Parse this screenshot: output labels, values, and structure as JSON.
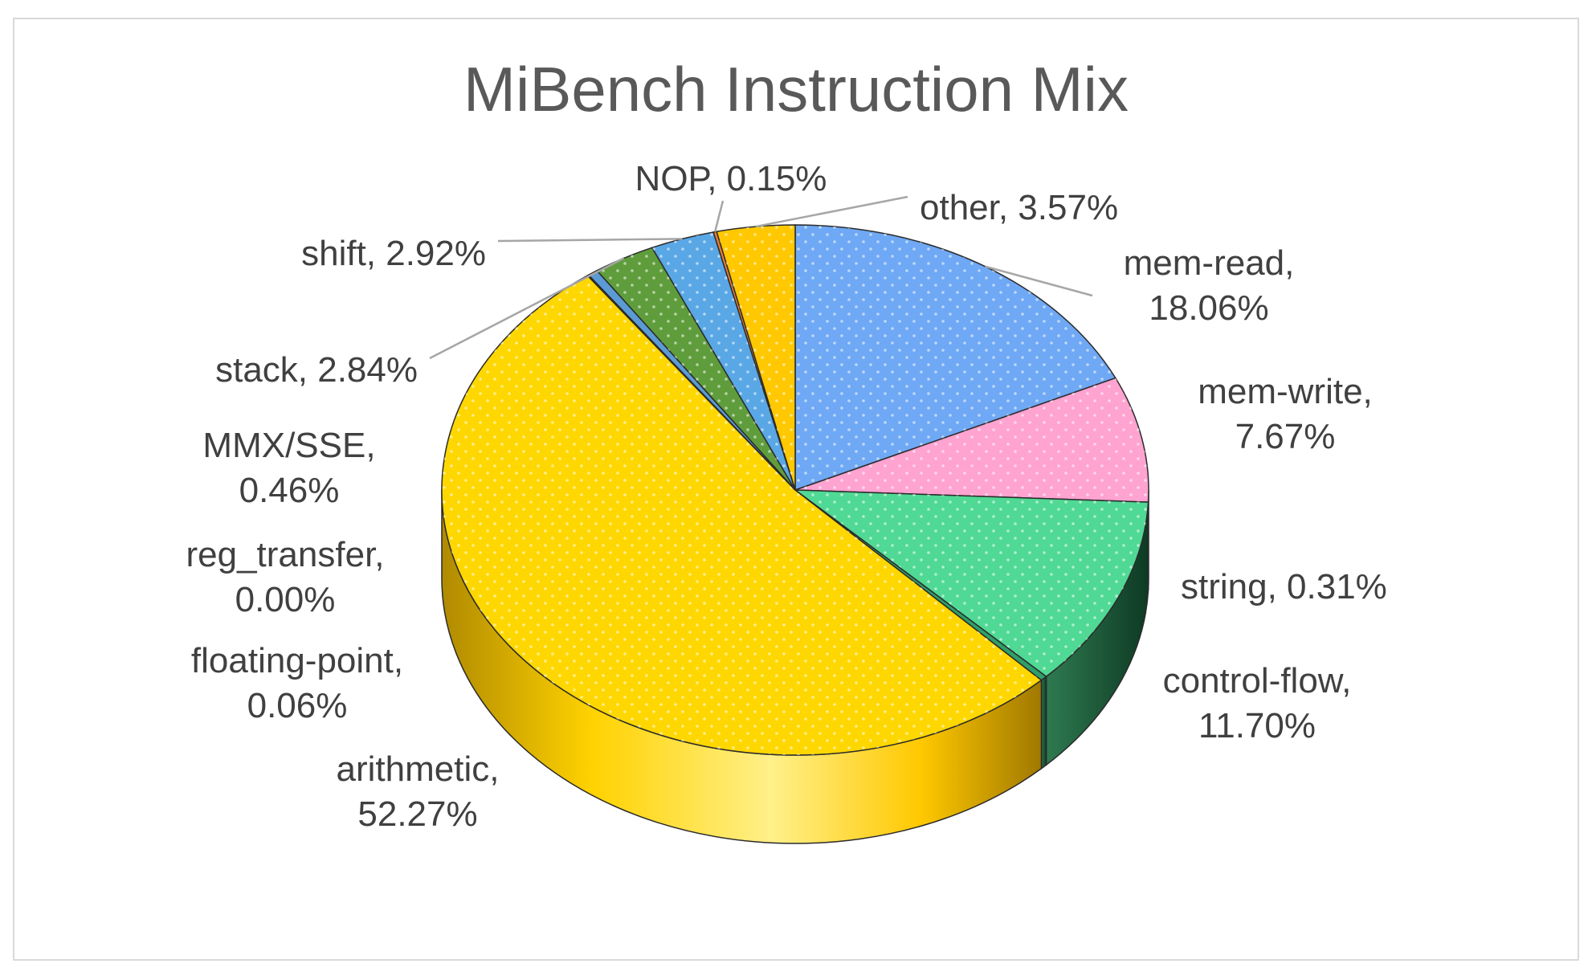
{
  "chart_data": {
    "type": "pie",
    "title": "MiBench Instruction Mix",
    "slices": [
      {
        "label": "mem-read",
        "value": 18.06,
        "display": "18.06%",
        "color": "#6fa8f5"
      },
      {
        "label": "mem-write",
        "value": 7.67,
        "display": "7.67%",
        "color": "#ffa3d1"
      },
      {
        "label": "control-flow",
        "value": 11.7,
        "display": "11.70%",
        "color": "#4fd994"
      },
      {
        "label": "string",
        "value": 0.31,
        "display": "0.31%",
        "color": "#2f9f6a"
      },
      {
        "label": "arithmetic",
        "value": 52.27,
        "display": "52.27%",
        "color": "#ffd700"
      },
      {
        "label": "floating-point",
        "value": 0.06,
        "display": "0.06%",
        "color": "#7030a0"
      },
      {
        "label": "reg_transfer",
        "value": 0.0,
        "display": "0.00%",
        "color": "#a5a5a5"
      },
      {
        "label": "MMX/SSE",
        "value": 0.46,
        "display": "0.46%",
        "color": "#5b9bd5"
      },
      {
        "label": "stack",
        "value": 2.84,
        "display": "2.84%",
        "color": "#5f9d3c"
      },
      {
        "label": "shift",
        "value": 2.92,
        "display": "2.92%",
        "color": "#5aa7e6"
      },
      {
        "label": "NOP",
        "value": 0.15,
        "display": "0.15%",
        "color": "#ed7d31"
      },
      {
        "label": "other",
        "value": 3.57,
        "display": "3.57%",
        "color": "#ffc800"
      }
    ],
    "label_strings": {
      "mem-read": [
        "mem-read,",
        "18.06%"
      ],
      "mem-write": [
        "mem-write,",
        "7.67%"
      ],
      "control-flow": [
        "control-flow,",
        "11.70%"
      ],
      "string": [
        "string, 0.31%"
      ],
      "arithmetic": [
        "arithmetic,",
        "52.27%"
      ],
      "floating-point": [
        "floating-point,",
        "0.06%"
      ],
      "reg_transfer": [
        "reg_transfer,",
        "0.00%"
      ],
      "MMX/SSE": [
        "MMX/SSE,",
        "0.46%"
      ],
      "stack": [
        "stack, 2.84%"
      ],
      "shift": [
        "shift, 2.92%"
      ],
      "NOP": [
        "NOP, 0.15%"
      ],
      "other": [
        "other, 3.57%"
      ]
    },
    "start_direction": "12 o'clock",
    "direction": "clockwise",
    "style": "3d-tilted"
  }
}
